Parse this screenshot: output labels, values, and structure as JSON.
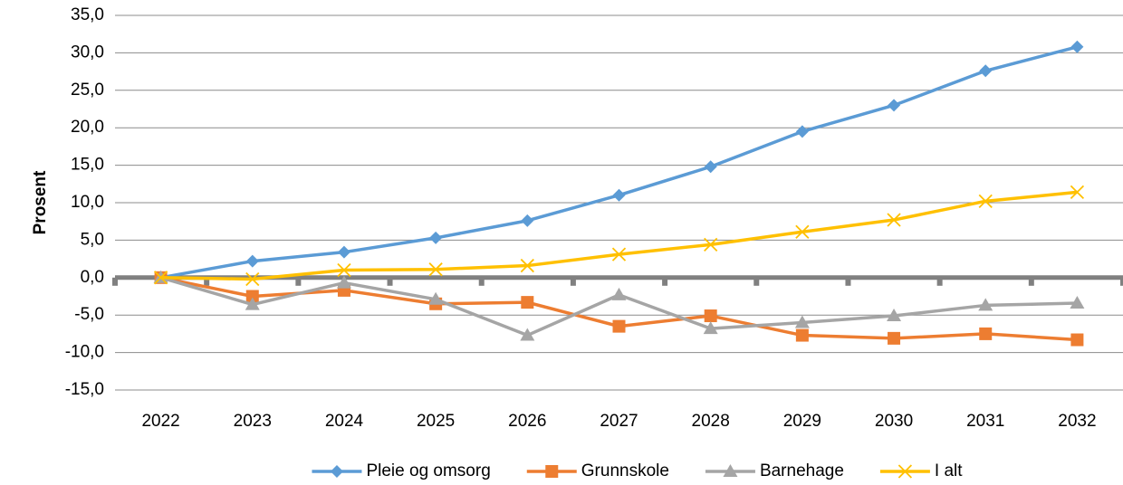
{
  "chart_data": {
    "type": "line",
    "y_label": "Prosent",
    "categories": [
      "2022",
      "2023",
      "2024",
      "2025",
      "2026",
      "2027",
      "2028",
      "2029",
      "2030",
      "2031",
      "2032"
    ],
    "series": [
      {
        "name": "Pleie og omsorg",
        "color": "#5b9bd5",
        "marker": "diamond",
        "values": [
          0,
          2.2,
          3.4,
          5.3,
          7.6,
          11.0,
          14.8,
          19.5,
          23.0,
          27.6,
          30.8
        ]
      },
      {
        "name": "Grunnskole",
        "color": "#ed7d31",
        "marker": "square",
        "values": [
          0,
          -2.5,
          -1.7,
          -3.5,
          -3.3,
          -6.5,
          -5.1,
          -7.7,
          -8.1,
          -7.5,
          -8.3
        ]
      },
      {
        "name": "Barnehage",
        "color": "#a5a5a5",
        "marker": "triangle",
        "values": [
          0,
          -3.6,
          -0.7,
          -2.9,
          -7.7,
          -2.3,
          -6.8,
          -6.0,
          -5.1,
          -3.7,
          -3.4
        ]
      },
      {
        "name": "I alt",
        "color": "#ffc000",
        "marker": "x",
        "values": [
          0,
          -0.2,
          1.0,
          1.1,
          1.6,
          3.1,
          4.4,
          6.1,
          7.7,
          10.2,
          11.4
        ]
      }
    ],
    "ylim": [
      -15,
      35
    ],
    "yticks": [
      {
        "value": -15,
        "label": "-15,0"
      },
      {
        "value": -10,
        "label": "-10,0"
      },
      {
        "value": -5,
        "label": "-5,0"
      },
      {
        "value": 0,
        "label": "0,0"
      },
      {
        "value": 5,
        "label": "5,0"
      },
      {
        "value": 10,
        "label": "10,0"
      },
      {
        "value": 15,
        "label": "15,0"
      },
      {
        "value": 20,
        "label": "20,0"
      },
      {
        "value": 25,
        "label": "25,0"
      },
      {
        "value": 30,
        "label": "30,0"
      },
      {
        "value": 35,
        "label": "35,0"
      }
    ],
    "grid": true,
    "legend": "bottom"
  }
}
